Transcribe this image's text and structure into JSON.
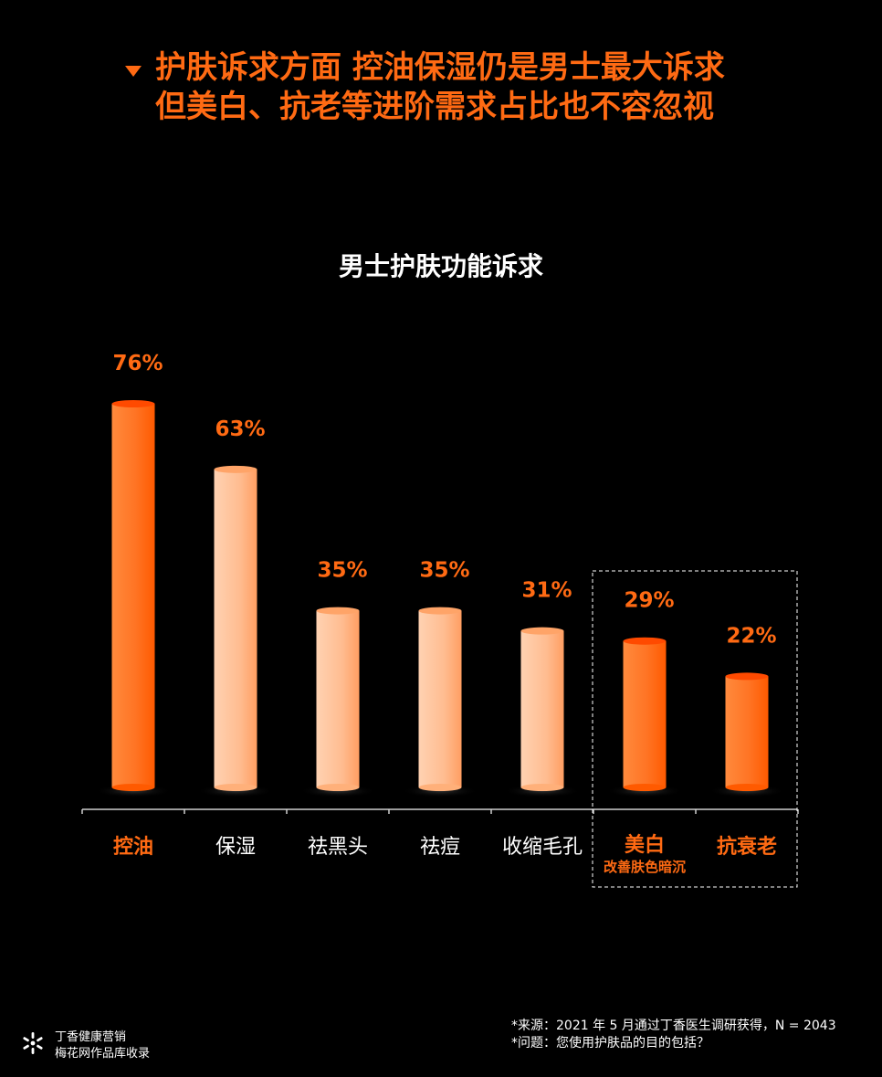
{
  "headline": {
    "line1": "护肤诉求方面 控油保湿仍是男士最大诉求",
    "line2": "但美白、抗老等进阶需求占比也不容忽视"
  },
  "chart_data": {
    "type": "bar",
    "title": "男士护肤功能诉求",
    "categories": [
      "控油",
      "保湿",
      "祛黑头",
      "祛痘",
      "收缩毛孔",
      "美白",
      "抗衰老"
    ],
    "category_sublabels": [
      "",
      "",
      "",
      "",
      "",
      "改善肤色暗沉",
      ""
    ],
    "values": [
      76,
      63,
      35,
      35,
      31,
      29,
      22
    ],
    "value_labels": [
      "76%",
      "63%",
      "35%",
      "35%",
      "31%",
      "29%",
      "22%"
    ],
    "highlighted": [
      true,
      false,
      false,
      false,
      false,
      true,
      true
    ],
    "boxed_categories": [
      "美白",
      "抗衰老"
    ],
    "ylim": [
      0,
      80
    ],
    "grid": false,
    "colors": {
      "highlight": "#ff6a13",
      "normal": "#ffc29a",
      "label_normal": "#ffffff"
    }
  },
  "footer": {
    "brand_line1": "丁香健康营销",
    "brand_line2": "梅花网作品库收录",
    "source_line1": "*来源：2021 年 5 月通过丁香医生调研获得，N = 2043",
    "source_line2": "*问题：您使用护肤品的目的包括？",
    "logo_icon": "snowflake-logo-icon"
  }
}
